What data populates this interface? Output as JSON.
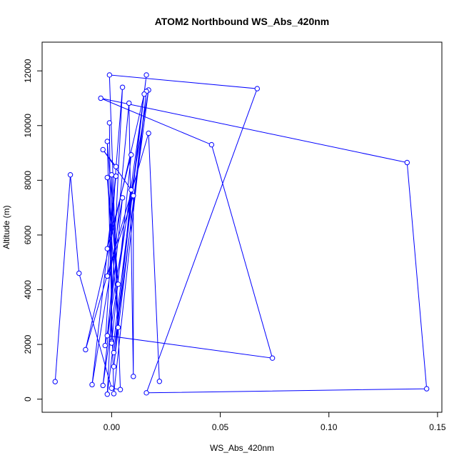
{
  "chart_data": {
    "type": "line",
    "title": "ATOM2 Northbound WS_Abs_420nm",
    "xlabel": "WS_Abs_420nm",
    "ylabel": "Altitude (m)",
    "xlim": [
      -0.032,
      0.152
    ],
    "ylim": [
      -480,
      13050
    ],
    "x_ticks": [
      0.0,
      0.05,
      0.1,
      0.15
    ],
    "x_tick_labels": [
      "0.00",
      "0.05",
      "0.10",
      "0.15"
    ],
    "y_ticks": [
      0,
      2000,
      4000,
      6000,
      8000,
      10000,
      12000
    ],
    "y_tick_labels": [
      "0",
      "2000",
      "4000",
      "6000",
      "8000",
      "10000",
      "12000"
    ],
    "grid": false,
    "legend": "none",
    "series": [
      {
        "color": "#0000ff",
        "marker": "open-circle",
        "points": [
          {
            "x": -0.026,
            "y": 640
          },
          {
            "x": -0.019,
            "y": 8200
          },
          {
            "x": -0.015,
            "y": 4600
          },
          {
            "x": 0.0,
            "y": 400
          },
          {
            "x": 0.004,
            "y": 350
          },
          {
            "x": -0.001,
            "y": 11850
          },
          {
            "x": 0.067,
            "y": 11350
          },
          {
            "x": 0.016,
            "y": 230
          },
          {
            "x": 0.145,
            "y": 380
          },
          {
            "x": 0.136,
            "y": 8650
          },
          {
            "x": -0.005,
            "y": 11000
          },
          {
            "x": 0.046,
            "y": 9300
          },
          {
            "x": 0.074,
            "y": 1500
          },
          {
            "x": -0.002,
            "y": 2320
          },
          {
            "x": 0.008,
            "y": 10820
          },
          {
            "x": 0.01,
            "y": 830
          },
          {
            "x": 0.01,
            "y": 7440
          },
          {
            "x": -0.002,
            "y": 4500
          },
          {
            "x": 0.005,
            "y": 11400
          },
          {
            "x": -0.002,
            "y": 180
          },
          {
            "x": 0.016,
            "y": 11850
          },
          {
            "x": 0.001,
            "y": 1700
          },
          {
            "x": 0.017,
            "y": 11300
          },
          {
            "x": -0.003,
            "y": 1960
          },
          {
            "x": 0.002,
            "y": 8500
          },
          {
            "x": -0.004,
            "y": 9120
          },
          {
            "x": 0.009,
            "y": 7650
          },
          {
            "x": 0.001,
            "y": 1190
          },
          {
            "x": 0.016,
            "y": 11250
          },
          {
            "x": 0.001,
            "y": 200
          },
          {
            "x": -0.002,
            "y": 9420
          },
          {
            "x": 0.003,
            "y": 4200
          },
          {
            "x": -0.002,
            "y": 8100
          },
          {
            "x": 0.003,
            "y": 2620
          },
          {
            "x": 0.0,
            "y": 8200
          },
          {
            "x": 0.0,
            "y": 2100
          },
          {
            "x": -0.001,
            "y": 10100
          },
          {
            "x": 0.0,
            "y": 2050
          },
          {
            "x": 0.009,
            "y": 8930
          },
          {
            "x": -0.002,
            "y": 5500
          },
          {
            "x": 0.002,
            "y": 8150
          },
          {
            "x": -0.009,
            "y": 530
          },
          {
            "x": 0.005,
            "y": 7360
          },
          {
            "x": -0.004,
            "y": 500
          },
          {
            "x": 0.015,
            "y": 11150
          },
          {
            "x": -0.012,
            "y": 1810
          },
          {
            "x": 0.017,
            "y": 9720
          },
          {
            "x": 0.022,
            "y": 650
          }
        ]
      }
    ]
  }
}
